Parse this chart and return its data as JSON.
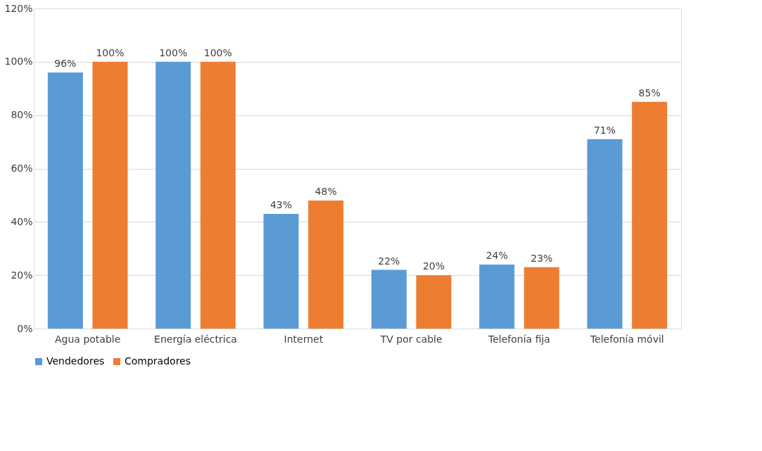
{
  "chart_data": {
    "type": "bar",
    "categories": [
      "Agua potable",
      "Energía eléctrica",
      "Internet",
      "TV por cable",
      "Telefonía fija",
      "Telefonía móvil"
    ],
    "series": [
      {
        "name": "Vendedores",
        "color": "#5b9bd5",
        "values": [
          96,
          100,
          43,
          22,
          24,
          71
        ],
        "value_labels": [
          "96%",
          "100%",
          "43%",
          "22%",
          "24%",
          "71%"
        ]
      },
      {
        "name": "Compradores",
        "color": "#ed7d31",
        "values": [
          100,
          100,
          48,
          20,
          23,
          85
        ],
        "value_labels": [
          "100%",
          "100%",
          "48%",
          "20%",
          "23%",
          "85%"
        ]
      }
    ],
    "ylim": [
      0,
      120
    ],
    "yticks": [
      {
        "value": 0,
        "label": "0%"
      },
      {
        "value": 20,
        "label": "20%"
      },
      {
        "value": 40,
        "label": "40%"
      },
      {
        "value": 60,
        "label": "60%"
      },
      {
        "value": 80,
        "label": "80%"
      },
      {
        "value": 100,
        "label": "100%"
      },
      {
        "value": 120,
        "label": "120%"
      }
    ],
    "grid": "y",
    "legend": "bottom"
  }
}
